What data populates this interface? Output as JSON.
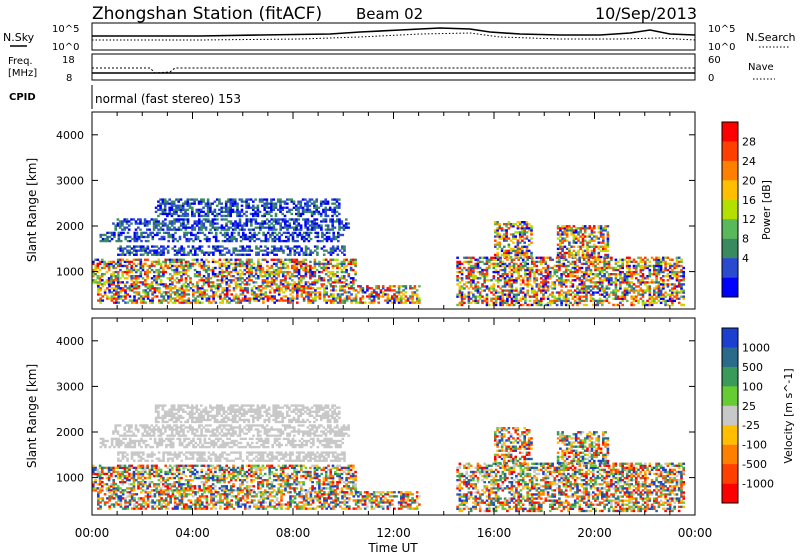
{
  "header": {
    "station": "Zhongshan Station (fitACF)",
    "beam": "Beam 02",
    "date": "10/Sep/2013"
  },
  "top_panels": {
    "nsky_label": "N.Sky",
    "nsearch_label": "N.Search",
    "noise_ticks_left": [
      "10^5",
      "10^0"
    ],
    "noise_ticks_right": [
      "10^5",
      "10^0"
    ],
    "freq_label_1": "Freq.",
    "freq_label_2": "[MHz]",
    "freq_ticks": [
      "18",
      "8"
    ],
    "nave_label": "Nave",
    "nave_ticks": [
      "60",
      "0"
    ],
    "cpid_label": "CPID",
    "cpid_text": "normal (fast stereo) 153"
  },
  "chart_data": [
    {
      "type": "heatmap",
      "name": "power",
      "ylabel": "Slant Range [km]",
      "xlabel": "Time UT",
      "ylim": [
        180,
        4500
      ],
      "xlim": [
        "00:00",
        "00:00"
      ],
      "yticks": [
        "1000",
        "2000",
        "3000",
        "4000"
      ],
      "xticks": [
        "00:00",
        "04:00",
        "08:00",
        "12:00",
        "16:00",
        "20:00",
        "00:00"
      ],
      "colorbar": {
        "label": "Power [dB]",
        "ticks": [
          "28",
          "24",
          "20",
          "16",
          "12",
          "8",
          "4"
        ],
        "colors": [
          "#ff0000",
          "#ff4000",
          "#ff7f00",
          "#ffbf00",
          "#b4e000",
          "#59b85a",
          "#3a8a5f",
          "#2a4ad0",
          "#0000ff"
        ]
      },
      "echo_regions": [
        {
          "t0": 0.3,
          "t1": 10.0,
          "r0": 1650,
          "r1": 1850
        },
        {
          "t0": 0.8,
          "t1": 10.2,
          "r0": 1900,
          "r1": 2150
        },
        {
          "t0": 2.5,
          "t1": 9.8,
          "r0": 2200,
          "r1": 2600
        },
        {
          "t0": 1.0,
          "t1": 10.0,
          "r0": 1350,
          "r1": 1550
        },
        {
          "t0": 0.0,
          "t1": 10.5,
          "r0": 700,
          "r1": 1250
        },
        {
          "t0": 0.2,
          "t1": 13.0,
          "r0": 300,
          "r1": 700
        },
        {
          "t0": 14.5,
          "t1": 23.5,
          "r0": 250,
          "r1": 1300
        },
        {
          "t0": 16.0,
          "t1": 17.5,
          "r0": 1300,
          "r1": 2100
        },
        {
          "t0": 18.5,
          "t1": 20.5,
          "r0": 1300,
          "r1": 2000
        }
      ]
    },
    {
      "type": "heatmap",
      "name": "velocity",
      "ylabel": "Slant Range [km]",
      "xlabel": "Time UT",
      "ylim": [
        180,
        4500
      ],
      "xlim": [
        "00:00",
        "00:00"
      ],
      "yticks": [
        "1000",
        "2000",
        "3000",
        "4000"
      ],
      "xticks": [
        "00:00",
        "04:00",
        "08:00",
        "12:00",
        "16:00",
        "20:00",
        "00:00"
      ],
      "colorbar": {
        "label": "Velocity [m s^-1]",
        "ticks": [
          "1000",
          "500",
          "100",
          "25",
          "-25",
          "-100",
          "-500",
          "-1000"
        ],
        "colors": [
          "#1c3fd0",
          "#2a6a8a",
          "#3a9a5a",
          "#66cc33",
          "#c8c8c8",
          "#ffbf00",
          "#ff8000",
          "#ff4000",
          "#ff0000"
        ]
      },
      "echo_regions": [
        {
          "t0": 0.3,
          "t1": 10.0,
          "r0": 1650,
          "r1": 1850
        },
        {
          "t0": 0.8,
          "t1": 10.2,
          "r0": 1900,
          "r1": 2150
        },
        {
          "t0": 2.5,
          "t1": 9.8,
          "r0": 2200,
          "r1": 2600
        },
        {
          "t0": 1.0,
          "t1": 10.0,
          "r0": 1350,
          "r1": 1550
        },
        {
          "t0": 0.0,
          "t1": 10.5,
          "r0": 700,
          "r1": 1250
        },
        {
          "t0": 0.2,
          "t1": 13.0,
          "r0": 300,
          "r1": 700
        },
        {
          "t0": 14.5,
          "t1": 23.5,
          "r0": 250,
          "r1": 1300
        },
        {
          "t0": 16.0,
          "t1": 17.5,
          "r0": 1300,
          "r1": 2100
        },
        {
          "t0": 18.5,
          "t1": 20.5,
          "r0": 1300,
          "r1": 2000
        }
      ]
    }
  ]
}
